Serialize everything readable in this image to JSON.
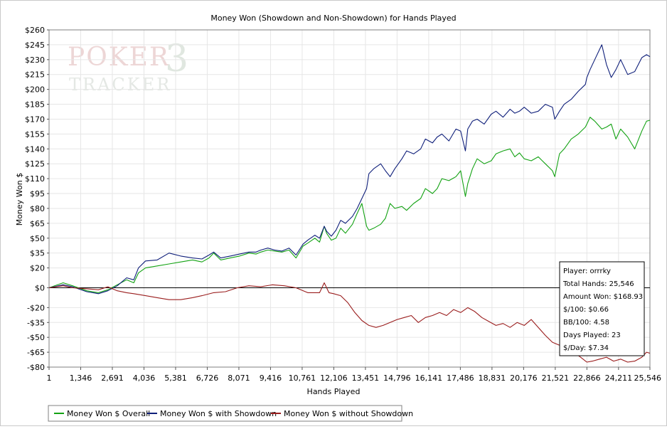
{
  "chart_data": {
    "type": "line",
    "title": "Money Won (Showdown and Non-Showdown) for Hands Played",
    "xlabel": "Hands Played",
    "ylabel": "Money Won $",
    "xlim": [
      1,
      25546
    ],
    "ylim": [
      -80,
      260
    ],
    "x_ticks": [
      1,
      1346,
      2691,
      4036,
      5381,
      6726,
      8071,
      9416,
      10761,
      12106,
      13451,
      14796,
      16141,
      17486,
      18831,
      20176,
      21521,
      22866,
      24211,
      25546
    ],
    "x_tick_labels": [
      "1",
      "1,346",
      "2,691",
      "4,036",
      "5,381",
      "6,726",
      "8,071",
      "9,416",
      "10,761",
      "12,106",
      "13,451",
      "14,796",
      "16,141",
      "17,486",
      "18,831",
      "20,176",
      "21,521",
      "22,866",
      "24,211",
      "25,546"
    ],
    "y_ticks": [
      260,
      245,
      230,
      215,
      200,
      185,
      170,
      155,
      140,
      125,
      110,
      95,
      80,
      65,
      50,
      35,
      20,
      0,
      -20,
      -35,
      -50,
      -65,
      -80
    ],
    "y_tick_labels": [
      "$260",
      "$245",
      "$230",
      "$215",
      "$200",
      "$185",
      "$170",
      "$155",
      "$140",
      "$125",
      "$110",
      "$95",
      "$80",
      "$65",
      "$50",
      "$35",
      "$20",
      "$0",
      "-$20",
      "-$35",
      "-$50",
      "-$65",
      "-$80"
    ],
    "grid": true,
    "legend_position": "bottom-left",
    "series": [
      {
        "name": "Money Won $ Overall",
        "color": "#13a213",
        "x": [
          1,
          600,
          1000,
          1600,
          2100,
          2500,
          2900,
          3300,
          3600,
          3800,
          4100,
          4600,
          5100,
          5600,
          6100,
          6500,
          6800,
          7000,
          7300,
          7700,
          8100,
          8500,
          8800,
          9000,
          9300,
          9600,
          9900,
          10200,
          10500,
          10800,
          11000,
          11300,
          11500,
          11700,
          11800,
          12000,
          12200,
          12400,
          12600,
          12900,
          13100,
          13300,
          13500,
          13600,
          13800,
          14100,
          14300,
          14500,
          14700,
          15000,
          15200,
          15500,
          15800,
          16000,
          16300,
          16500,
          16700,
          17000,
          17300,
          17500,
          17700,
          17800,
          18000,
          18200,
          18500,
          18800,
          19000,
          19300,
          19600,
          19800,
          20000,
          20200,
          20500,
          20800,
          21100,
          21400,
          21500,
          21700,
          21900,
          22200,
          22500,
          22800,
          22866,
          23000,
          23200,
          23500,
          23700,
          23900,
          24100,
          24300,
          24600,
          24900,
          25200,
          25400,
          25546
        ],
        "y": [
          0,
          5,
          2,
          -3,
          -5,
          -2,
          3,
          8,
          5,
          15,
          20,
          22,
          24,
          26,
          28,
          26,
          30,
          35,
          28,
          30,
          32,
          35,
          34,
          36,
          38,
          37,
          36,
          38,
          30,
          42,
          45,
          50,
          46,
          62,
          55,
          48,
          50,
          60,
          55,
          64,
          75,
          85,
          62,
          58,
          60,
          64,
          70,
          85,
          80,
          82,
          78,
          85,
          90,
          100,
          95,
          100,
          110,
          108,
          112,
          118,
          92,
          105,
          120,
          130,
          125,
          128,
          135,
          138,
          140,
          132,
          136,
          130,
          128,
          132,
          125,
          118,
          112,
          135,
          140,
          150,
          155,
          162,
          165,
          172,
          168,
          160,
          162,
          165,
          150,
          160,
          152,
          140,
          158,
          168,
          168.93
        ]
      },
      {
        "name": "Money Won $ with Showdown",
        "color": "#0f1f7a",
        "x": [
          1,
          600,
          1000,
          1600,
          2100,
          2500,
          2900,
          3300,
          3600,
          3800,
          4100,
          4600,
          5100,
          5600,
          6100,
          6500,
          6800,
          7000,
          7300,
          7700,
          8100,
          8500,
          8800,
          9000,
          9300,
          9600,
          9900,
          10200,
          10500,
          10800,
          11000,
          11300,
          11500,
          11700,
          11800,
          12000,
          12200,
          12400,
          12600,
          12900,
          13100,
          13300,
          13500,
          13600,
          13800,
          14100,
          14300,
          14500,
          14700,
          15000,
          15200,
          15500,
          15800,
          16000,
          16300,
          16500,
          16700,
          17000,
          17300,
          17500,
          17700,
          17800,
          18000,
          18200,
          18500,
          18800,
          19000,
          19300,
          19600,
          19800,
          20000,
          20200,
          20500,
          20800,
          21100,
          21400,
          21500,
          21700,
          21900,
          22200,
          22500,
          22800,
          22866,
          23000,
          23200,
          23500,
          23700,
          23900,
          24100,
          24300,
          24600,
          24900,
          25200,
          25400,
          25546
        ],
        "y": [
          0,
          3,
          1,
          -4,
          -6,
          -3,
          2,
          10,
          8,
          20,
          27,
          28,
          35,
          32,
          30,
          29,
          33,
          36,
          30,
          32,
          34,
          36,
          36,
          38,
          40,
          38,
          37,
          40,
          33,
          44,
          48,
          53,
          50,
          62,
          57,
          52,
          58,
          68,
          65,
          72,
          80,
          90,
          100,
          115,
          120,
          125,
          118,
          112,
          120,
          130,
          138,
          135,
          140,
          150,
          146,
          152,
          155,
          148,
          160,
          158,
          138,
          160,
          168,
          170,
          165,
          175,
          178,
          172,
          180,
          176,
          178,
          182,
          176,
          178,
          185,
          182,
          170,
          178,
          185,
          190,
          198,
          205,
          212,
          220,
          230,
          245,
          225,
          212,
          220,
          230,
          215,
          218,
          232,
          235,
          233
        ]
      },
      {
        "name": "Money Won $ without Showdown",
        "color": "#9a1d1d",
        "x": [
          1,
          600,
          1000,
          1600,
          2100,
          2500,
          2900,
          3300,
          3600,
          4100,
          4600,
          5100,
          5600,
          6100,
          6500,
          7000,
          7500,
          8000,
          8500,
          9000,
          9500,
          10000,
          10500,
          11000,
          11500,
          11700,
          11900,
          12100,
          12400,
          12700,
          13000,
          13300,
          13600,
          13900,
          14200,
          14500,
          14800,
          15100,
          15400,
          15700,
          16000,
          16300,
          16600,
          16900,
          17200,
          17500,
          17800,
          18100,
          18400,
          18700,
          19000,
          19300,
          19600,
          19900,
          20200,
          20500,
          20800,
          21100,
          21400,
          21700,
          22000,
          22300,
          22600,
          22866,
          23100,
          23400,
          23700,
          24000,
          24300,
          24600,
          24900,
          25200,
          25400,
          25546
        ],
        "y": [
          0,
          2,
          0,
          -1,
          -2,
          1,
          -3,
          -5,
          -6,
          -8,
          -10,
          -12,
          -12,
          -10,
          -8,
          -5,
          -4,
          0,
          2,
          1,
          3,
          2,
          0,
          -5,
          -5,
          5,
          -5,
          -6,
          -8,
          -15,
          -25,
          -33,
          -38,
          -40,
          -38,
          -35,
          -32,
          -30,
          -28,
          -35,
          -30,
          -28,
          -25,
          -28,
          -22,
          -25,
          -20,
          -24,
          -30,
          -34,
          -38,
          -36,
          -40,
          -35,
          -38,
          -32,
          -40,
          -48,
          -55,
          -58,
          -62,
          -65,
          -70,
          -75,
          -74,
          -72,
          -70,
          -74,
          -72,
          -75,
          -74,
          -70,
          -65,
          -66
        ]
      }
    ]
  },
  "stats_box": {
    "player": "Player: orrrky",
    "total_hands": "Total Hands: 25,546",
    "amount_won": "Amount Won: $168.93",
    "per_100": "$/100: $0.66",
    "bb_per_100": "BB/100: 4.58",
    "days_played": "Days Played: 23",
    "per_day": "$/Day: $7.34"
  },
  "watermark": {
    "line1": "POKER",
    "digit": "3",
    "line2": "TRACKER",
    "color": "#e8c9c9"
  }
}
